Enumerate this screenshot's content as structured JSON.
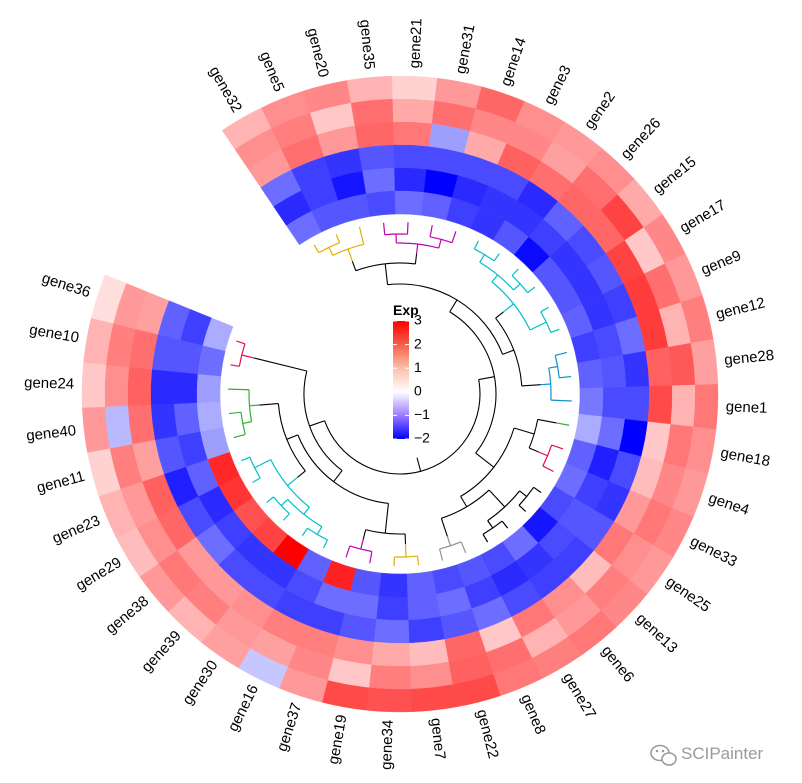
{
  "chart_data": {
    "type": "heatmap",
    "layout": "circular",
    "row_labels": [
      "gene32",
      "gene5",
      "gene20",
      "gene35",
      "gene21",
      "gene31",
      "gene14",
      "gene3",
      "gene2",
      "gene26",
      "gene15",
      "gene17",
      "gene9",
      "gene12",
      "gene28",
      "gene1",
      "gene18",
      "gene4",
      "gene33",
      "gene25",
      "gene13",
      "gene6",
      "gene27",
      "gene8",
      "gene22",
      "gene7",
      "gene34",
      "gene19",
      "gene37",
      "gene16",
      "gene30",
      "gene39",
      "gene38",
      "gene29",
      "gene23",
      "gene11",
      "gene40",
      "gene24",
      "gene10",
      "gene36"
    ],
    "ring_count": 6,
    "values": [
      [
        0.6,
        1.0,
        0.9,
        -1.0,
        -1.6,
        -1.0
      ],
      [
        1.0,
        1.2,
        1.4,
        -1.4,
        -1.4,
        -1.2
      ],
      [
        1.1,
        0.4,
        0.9,
        -1.5,
        -1.8,
        -1.2
      ],
      [
        0.6,
        1.4,
        1.5,
        -1.2,
        -1.0,
        -1.3
      ],
      [
        0.3,
        0.7,
        1.3,
        -1.3,
        -1.6,
        -1.0
      ],
      [
        0.9,
        1.4,
        -0.6,
        -1.3,
        -2.0,
        -1.1
      ],
      [
        1.5,
        1.1,
        0.7,
        -1.3,
        -1.6,
        -1.4
      ],
      [
        1.0,
        1.1,
        1.6,
        -1.3,
        -1.5,
        -1.5
      ],
      [
        0.9,
        0.8,
        1.4,
        -1.6,
        -1.5,
        -1.2
      ],
      [
        1.0,
        1.4,
        1.5,
        -1.1,
        -1.4,
        -1.9
      ],
      [
        0.7,
        2.0,
        1.5,
        -1.3,
        -1.5,
        -1.2
      ],
      [
        1.1,
        0.4,
        2.0,
        -1.2,
        -1.5,
        -1.2
      ],
      [
        0.9,
        1.4,
        2.1,
        -1.4,
        -1.5,
        -1.1
      ],
      [
        1.2,
        0.6,
        2.1,
        -1.0,
        -1.3,
        -1.4
      ],
      [
        0.8,
        1.7,
        1.6,
        -1.5,
        -1.2,
        -1.1
      ],
      [
        1.3,
        0.6,
        1.9,
        -1.3,
        -1.3,
        -0.9
      ],
      [
        1.0,
        1.3,
        0.4,
        -2.0,
        -1.0,
        -0.5
      ],
      [
        0.9,
        1.1,
        0.5,
        -1.3,
        -1.7,
        -1.1
      ],
      [
        1.1,
        1.3,
        0.9,
        -1.5,
        -1.4,
        -1.0
      ],
      [
        0.9,
        1.0,
        1.3,
        -1.2,
        -1.2,
        -1.3
      ],
      [
        1.1,
        1.2,
        0.5,
        -1.4,
        -1.3,
        -1.8
      ],
      [
        1.3,
        0.9,
        1.0,
        -1.4,
        -1.5,
        -1.0
      ],
      [
        1.2,
        0.6,
        1.3,
        -1.3,
        -1.6,
        -1.3
      ],
      [
        1.3,
        1.4,
        0.4,
        -1.0,
        -1.4,
        -1.2
      ],
      [
        1.9,
        1.6,
        1.5,
        -1.2,
        -1.0,
        -1.3
      ],
      [
        1.9,
        1.0,
        0.5,
        -1.4,
        -1.1,
        -1.1
      ],
      [
        1.8,
        1.2,
        0.7,
        -1.0,
        -1.4,
        -1.5
      ],
      [
        1.9,
        0.4,
        1.0,
        -1.2,
        -1.0,
        -1.2
      ],
      [
        0.9,
        1.1,
        1.2,
        -1.4,
        -1.0,
        2.5
      ],
      [
        -0.3,
        0.8,
        1.2,
        -1.4,
        -1.3,
        -1.1
      ],
      [
        0.8,
        0.9,
        1.0,
        -1.3,
        -1.5,
        3.0
      ],
      [
        0.6,
        1.2,
        0.9,
        -1.3,
        -1.5,
        2.0
      ],
      [
        0.9,
        1.3,
        0.9,
        -1.0,
        -1.4,
        1.8
      ],
      [
        0.5,
        1.0,
        1.5,
        -1.3,
        -1.6,
        2.2
      ],
      [
        0.6,
        0.9,
        1.6,
        -1.7,
        -1.1,
        2.4
      ],
      [
        0.3,
        1.2,
        0.8,
        -1.2,
        -1.4,
        -0.6
      ],
      [
        0.9,
        -0.4,
        1.4,
        -1.5,
        -1.1,
        -0.5
      ],
      [
        0.4,
        1.0,
        1.6,
        -1.6,
        -1.6,
        -0.6
      ],
      [
        0.6,
        1.2,
        1.4,
        -1.2,
        -1.2,
        -1.0
      ],
      [
        0.2,
        0.9,
        0.8,
        -1.1,
        -1.4,
        -0.5
      ]
    ],
    "color_scale": {
      "min": -2,
      "mid": 0,
      "max": 3,
      "low_color": "#0000ff",
      "mid_color": "#ffffff",
      "high_color": "#ff0000"
    },
    "legend": {
      "title": "Exp",
      "ticks": [
        3,
        2,
        1,
        0,
        -1,
        -2
      ],
      "placement": "center"
    },
    "dendrogram_clusters": [
      {
        "members": [
          "gene32",
          "gene5",
          "gene20"
        ],
        "color": "#e0b000"
      },
      {
        "members": [
          "gene35",
          "gene21",
          "gene31",
          "gene14"
        ],
        "color": "#c000b0"
      },
      {
        "members": [
          "gene3",
          "gene2",
          "gene26",
          "gene15",
          "gene17",
          "gene9"
        ],
        "color": "#00c0c8"
      },
      {
        "members": [
          "gene12",
          "gene28",
          "gene1"
        ],
        "color": "#1090d0"
      },
      {
        "members": [
          "gene18"
        ],
        "color": "#30b030"
      },
      {
        "members": [
          "gene4",
          "gene33"
        ],
        "color": "#e01050"
      },
      {
        "members": [
          "gene25",
          "gene13",
          "gene6",
          "gene27"
        ],
        "color": "#000000"
      },
      {
        "members": [
          "gene8",
          "gene22"
        ],
        "color": "#909090"
      },
      {
        "members": [
          "gene7",
          "gene34"
        ],
        "color": "#e0b000"
      },
      {
        "members": [
          "gene19",
          "gene37"
        ],
        "color": "#c000b0"
      },
      {
        "members": [
          "gene16",
          "gene30",
          "gene39",
          "gene38",
          "gene29",
          "gene23"
        ],
        "color": "#00c0c8"
      },
      {
        "members": [
          "gene11",
          "gene40",
          "gene24"
        ],
        "color": "#30b030"
      },
      {
        "members": [
          "gene10",
          "gene36"
        ],
        "color": "#e01050"
      }
    ]
  },
  "watermark": {
    "icon": "wechat-icon",
    "text": "SCIPainter"
  }
}
